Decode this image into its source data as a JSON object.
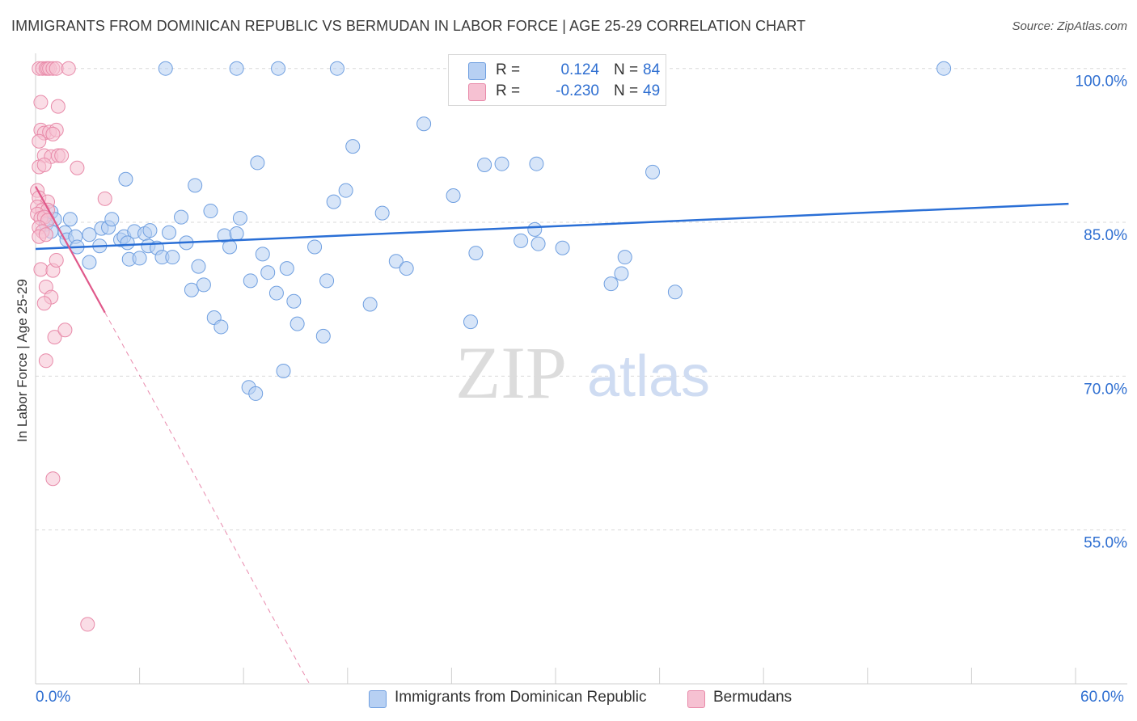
{
  "header": {
    "title": "IMMIGRANTS FROM DOMINICAN REPUBLIC VS BERMUDAN IN LABOR FORCE | AGE 25-29 CORRELATION CHART",
    "source": "Source: ZipAtlas.com"
  },
  "legend": {
    "series1": {
      "r_label": "R =",
      "r_value": "0.124",
      "n_label": "N =",
      "n_value": "84"
    },
    "series2": {
      "r_label": "R =",
      "r_value": "-0.230",
      "n_label": "N =",
      "n_value": "49"
    }
  },
  "bottom_legend": {
    "series1": "Immigrants from Dominican Republic",
    "series2": "Bermudans"
  },
  "axes": {
    "x_min_label": "0.0%",
    "x_max_label": "60.0%",
    "y_label": "In Labor Force | Age 25-29"
  },
  "watermark": {
    "zip": "ZIP",
    "atlas": "atlas"
  },
  "colors": {
    "blue_fill": "#b7d0f3",
    "blue_stroke": "#6f9fe0",
    "blue_line": "#2a6fd6",
    "pink_fill": "#f6c1d2",
    "pink_stroke": "#e88aa9",
    "pink_line": "#e0588a",
    "axis_text": "#2f6fd1",
    "grid": "#d9d9d9"
  },
  "chart_data": {
    "type": "scatter",
    "title": "IMMIGRANTS FROM DOMINICAN REPUBLIC VS BERMUDAN IN LABOR FORCE | AGE 25-29 CORRELATION CHART",
    "xlabel": "",
    "ylabel": "In Labor Force | Age 25-29",
    "xlim": [
      0,
      60
    ],
    "ylim": [
      40,
      101
    ],
    "y_ticks": [
      {
        "value": 55,
        "label": "55.0%"
      },
      {
        "value": 70,
        "label": "70.0%"
      },
      {
        "value": 85,
        "label": "85.0%"
      },
      {
        "value": 100,
        "label": "100.0%"
      }
    ],
    "x_tick_values": [
      0,
      6,
      12,
      18,
      24,
      30,
      36,
      42,
      48,
      54,
      60
    ],
    "series": [
      {
        "name": "Immigrants from Dominican Republic",
        "color": "#b7d0f3",
        "trend": {
          "x_start": 0,
          "y_start": 82.4,
          "x_end": 59.6,
          "y_end": 86.8
        },
        "points": [
          [
            0.9,
            86.0
          ],
          [
            1.1,
            85.3
          ],
          [
            0.6,
            84.8
          ],
          [
            0.9,
            84.1
          ],
          [
            1.7,
            84.0
          ],
          [
            1.8,
            83.3
          ],
          [
            2.3,
            83.6
          ],
          [
            2.4,
            82.6
          ],
          [
            3.1,
            83.8
          ],
          [
            3.7,
            82.7
          ],
          [
            3.1,
            81.1
          ],
          [
            3.8,
            84.4
          ],
          [
            4.2,
            84.5
          ],
          [
            4.4,
            85.3
          ],
          [
            4.9,
            83.3
          ],
          [
            5.1,
            83.6
          ],
          [
            5.7,
            84.1
          ],
          [
            5.3,
            83.0
          ],
          [
            5.4,
            81.4
          ],
          [
            6.0,
            81.5
          ],
          [
            6.3,
            83.9
          ],
          [
            6.5,
            82.7
          ],
          [
            6.6,
            84.2
          ],
          [
            7.0,
            82.5
          ],
          [
            7.3,
            81.6
          ],
          [
            7.7,
            84.0
          ],
          [
            7.9,
            81.6
          ],
          [
            8.4,
            85.5
          ],
          [
            8.7,
            83.0
          ],
          [
            9.0,
            78.4
          ],
          [
            9.2,
            88.6
          ],
          [
            9.4,
            80.7
          ],
          [
            9.7,
            78.9
          ],
          [
            10.1,
            86.1
          ],
          [
            10.3,
            75.7
          ],
          [
            10.7,
            74.8
          ],
          [
            10.9,
            83.7
          ],
          [
            11.2,
            82.6
          ],
          [
            11.6,
            83.9
          ],
          [
            11.8,
            85.4
          ],
          [
            12.3,
            68.9
          ],
          [
            12.4,
            79.3
          ],
          [
            12.7,
            68.3
          ],
          [
            12.8,
            90.8
          ],
          [
            13.1,
            81.9
          ],
          [
            13.4,
            80.1
          ],
          [
            13.9,
            78.1
          ],
          [
            14.3,
            70.5
          ],
          [
            14.5,
            80.5
          ],
          [
            14.9,
            77.3
          ],
          [
            15.1,
            75.1
          ],
          [
            16.1,
            82.6
          ],
          [
            16.6,
            73.9
          ],
          [
            16.8,
            79.3
          ],
          [
            17.2,
            87.0
          ],
          [
            17.9,
            88.1
          ],
          [
            18.3,
            92.4
          ],
          [
            19.3,
            77.0
          ],
          [
            20.0,
            85.9
          ],
          [
            20.8,
            81.2
          ],
          [
            21.4,
            80.5
          ],
          [
            22.4,
            94.6
          ],
          [
            24.1,
            87.6
          ],
          [
            25.1,
            75.3
          ],
          [
            25.4,
            82.0
          ],
          [
            25.9,
            90.6
          ],
          [
            26.9,
            90.7
          ],
          [
            28.0,
            83.2
          ],
          [
            28.8,
            84.3
          ],
          [
            29.0,
            82.9
          ],
          [
            28.9,
            90.7
          ],
          [
            30.4,
            82.5
          ],
          [
            33.2,
            79.0
          ],
          [
            33.8,
            80.0
          ],
          [
            34.0,
            81.6
          ],
          [
            35.6,
            89.9
          ],
          [
            36.9,
            78.2
          ],
          [
            7.5,
            100.0
          ],
          [
            11.6,
            100.0
          ],
          [
            17.4,
            100.0
          ],
          [
            52.4,
            100.0
          ],
          [
            5.2,
            89.2
          ],
          [
            14.0,
            100.0
          ],
          [
            2.0,
            85.3
          ]
        ]
      },
      {
        "name": "Bermudans",
        "color": "#f6c1d2",
        "trend": {
          "x_start": 0,
          "y_start": 88.5,
          "x_end": 4.0,
          "y_end": 76.2
        },
        "trend_dashed": {
          "x_start": 4.0,
          "y_start": 76.2,
          "x_end": 15.8,
          "y_end": 40.0
        },
        "points": [
          [
            0.2,
            100.0
          ],
          [
            0.4,
            100.0
          ],
          [
            0.6,
            100.0
          ],
          [
            0.7,
            100.0
          ],
          [
            0.8,
            100.0
          ],
          [
            1.0,
            100.0
          ],
          [
            1.2,
            100.0
          ],
          [
            1.9,
            100.0
          ],
          [
            0.3,
            96.7
          ],
          [
            1.3,
            96.3
          ],
          [
            0.3,
            94.0
          ],
          [
            0.5,
            93.7
          ],
          [
            0.8,
            93.8
          ],
          [
            1.2,
            94.0
          ],
          [
            1.0,
            93.6
          ],
          [
            0.2,
            92.9
          ],
          [
            0.5,
            91.5
          ],
          [
            0.9,
            91.4
          ],
          [
            1.3,
            91.5
          ],
          [
            1.5,
            91.5
          ],
          [
            0.2,
            90.4
          ],
          [
            0.5,
            90.6
          ],
          [
            2.4,
            90.3
          ],
          [
            0.1,
            88.1
          ],
          [
            0.2,
            87.4
          ],
          [
            0.7,
            87.0
          ],
          [
            4.0,
            87.3
          ],
          [
            0.1,
            86.5
          ],
          [
            0.4,
            86.2
          ],
          [
            0.7,
            86.2
          ],
          [
            0.1,
            85.8
          ],
          [
            0.3,
            85.4
          ],
          [
            0.5,
            85.5
          ],
          [
            0.7,
            85.2
          ],
          [
            0.2,
            84.5
          ],
          [
            0.4,
            84.1
          ],
          [
            0.2,
            83.6
          ],
          [
            0.6,
            83.8
          ],
          [
            0.3,
            80.4
          ],
          [
            1.0,
            80.3
          ],
          [
            1.2,
            81.3
          ],
          [
            0.6,
            78.7
          ],
          [
            0.9,
            77.7
          ],
          [
            0.5,
            77.1
          ],
          [
            1.1,
            73.8
          ],
          [
            1.7,
            74.5
          ],
          [
            0.6,
            71.5
          ],
          [
            1.0,
            60.0
          ],
          [
            3.0,
            45.8
          ]
        ]
      }
    ]
  }
}
